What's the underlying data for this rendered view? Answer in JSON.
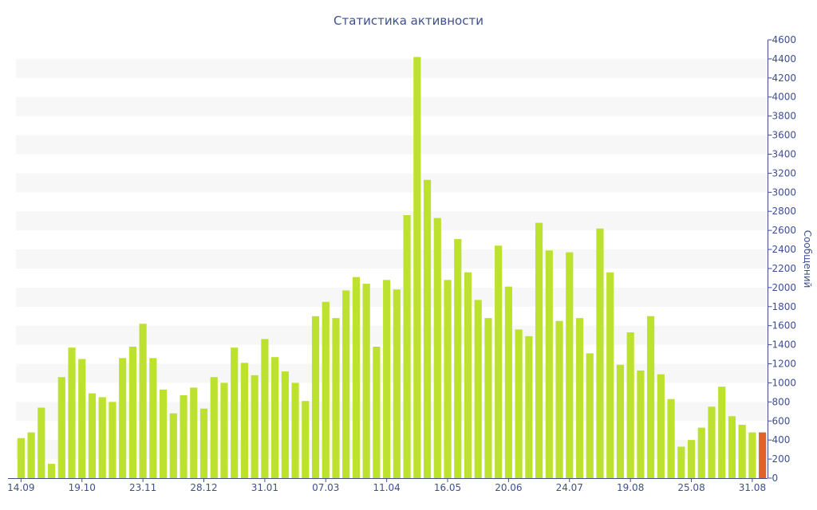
{
  "chart_data": {
    "type": "bar",
    "title": "Статистика активности",
    "xlabel": "",
    "ylabel": "Сообщений",
    "ylim": [
      0,
      4600
    ],
    "y_ticks": [
      0,
      200,
      400,
      600,
      800,
      1000,
      1200,
      1400,
      1600,
      1800,
      2000,
      2200,
      2400,
      2600,
      2800,
      3000,
      3200,
      3400,
      3600,
      3800,
      4000,
      4200,
      4400,
      4600
    ],
    "y_axis_position": "right",
    "grid": true,
    "legend": "none",
    "x_tick_labels": [
      {
        "index": 0,
        "label": "14.09"
      },
      {
        "index": 6,
        "label": "19.10"
      },
      {
        "index": 12,
        "label": "23.11"
      },
      {
        "index": 18,
        "label": "28.12"
      },
      {
        "index": 24,
        "label": "31.01"
      },
      {
        "index": 30,
        "label": "07.03"
      },
      {
        "index": 36,
        "label": "11.04"
      },
      {
        "index": 42,
        "label": "16.05"
      },
      {
        "index": 48,
        "label": "20.06"
      },
      {
        "index": 54,
        "label": "24.07"
      },
      {
        "index": 60,
        "label": "19.08"
      },
      {
        "index": 66,
        "label": "25.08"
      },
      {
        "index": 72,
        "label": "31.08"
      }
    ],
    "values": [
      420,
      480,
      740,
      150,
      1060,
      1370,
      1250,
      890,
      850,
      800,
      1260,
      1380,
      1620,
      1260,
      930,
      680,
      870,
      950,
      730,
      1060,
      1000,
      1370,
      1210,
      1080,
      1460,
      1270,
      1120,
      1000,
      810,
      1700,
      1850,
      1680,
      1970,
      2110,
      2040,
      1380,
      2080,
      1980,
      2760,
      4420,
      3130,
      2730,
      2080,
      2510,
      2160,
      1870,
      1680,
      2440,
      2010,
      1560,
      1490,
      2680,
      2390,
      1650,
      2370,
      1680,
      1310,
      2620,
      2160,
      1190,
      1530,
      1130,
      1700,
      1090,
      830,
      330,
      400,
      530,
      750,
      960,
      650,
      560,
      480,
      480
    ],
    "highlighted_index": 73,
    "colors": {
      "bar": "#bce12f",
      "bar_highlight": "#e0612a",
      "band": "#f7f7f7",
      "axis": "#3e4f8f",
      "text": "#3e4f8f"
    }
  }
}
